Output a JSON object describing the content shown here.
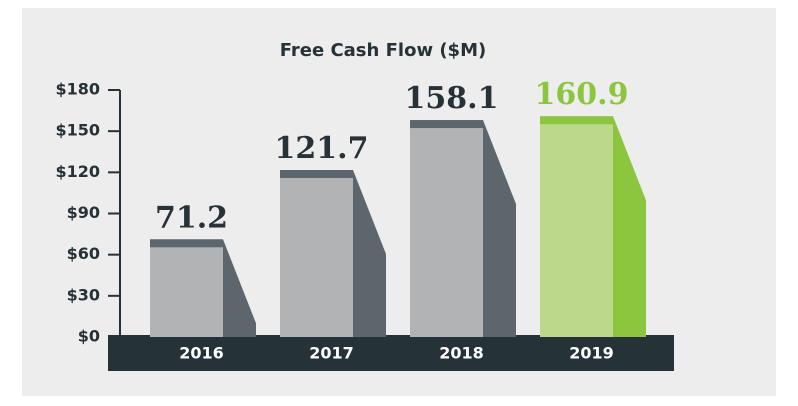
{
  "chart_data": {
    "type": "bar",
    "title": "Free Cash Flow ($M)",
    "categories": [
      "2016",
      "2017",
      "2018",
      "2019"
    ],
    "values": [
      71.2,
      121.7,
      158.1,
      160.9
    ],
    "colors": [
      "#b2b3b5",
      "#b2b3b5",
      "#b2b3b5",
      "#bcd98b"
    ],
    "cap_colors": [
      "#5c666c",
      "#5c666c",
      "#5c666c",
      "#8cc63f"
    ],
    "label_colors": [
      "#263238",
      "#263238",
      "#263238",
      "#8cc63f"
    ],
    "ylim": [
      0,
      180
    ],
    "yticks": [
      {
        "value": 0,
        "label": "$0"
      },
      {
        "value": 30,
        "label": "$30"
      },
      {
        "value": 60,
        "label": "$60"
      },
      {
        "value": 90,
        "label": "$90"
      },
      {
        "value": 120,
        "label": "$120"
      },
      {
        "value": 150,
        "label": "$150"
      },
      {
        "value": 180,
        "label": "$180"
      }
    ]
  }
}
